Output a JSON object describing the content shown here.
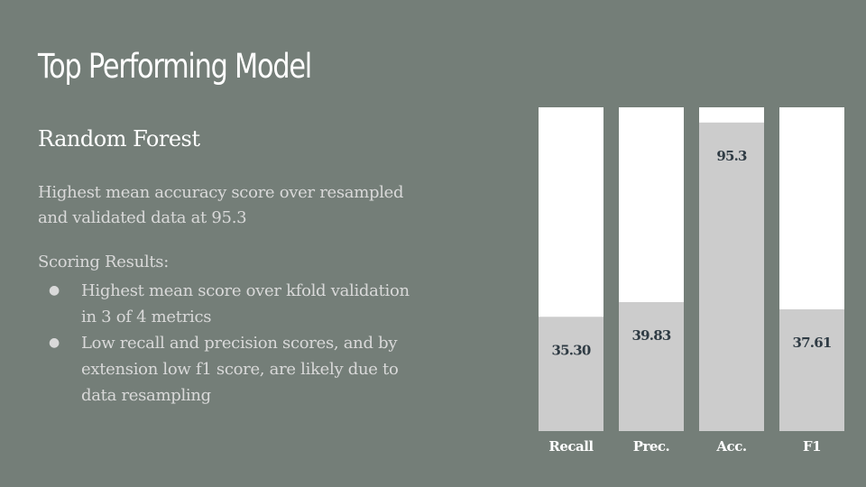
{
  "slide": {
    "title": "Top Performing Model",
    "subtitle": "Random Forest",
    "description": "Highest mean accuracy score over resampled and validated data at 95.3",
    "scoring_heading": "Scoring Results:",
    "bullets": [
      "Highest mean score over kfold validation in 3 of 4 metrics",
      "Low recall and precision scores, and by extension low f1 score, are likely due to data resampling"
    ]
  },
  "colors": {
    "background": "#747e78",
    "bar_fill": "#cccccc",
    "bar_track": "#ffffff",
    "value_label": "#2f3b44",
    "category_label": "#ffffff"
  },
  "chart_data": {
    "type": "bar",
    "categories": [
      "Recall",
      "Prec.",
      "Acc.",
      "F1"
    ],
    "values": [
      35.3,
      39.83,
      95.3,
      37.61
    ],
    "value_labels": [
      "35.30",
      "39.83",
      "95.3",
      "37.61"
    ],
    "ylim": [
      0,
      100
    ],
    "grid": false,
    "legend": "none"
  }
}
